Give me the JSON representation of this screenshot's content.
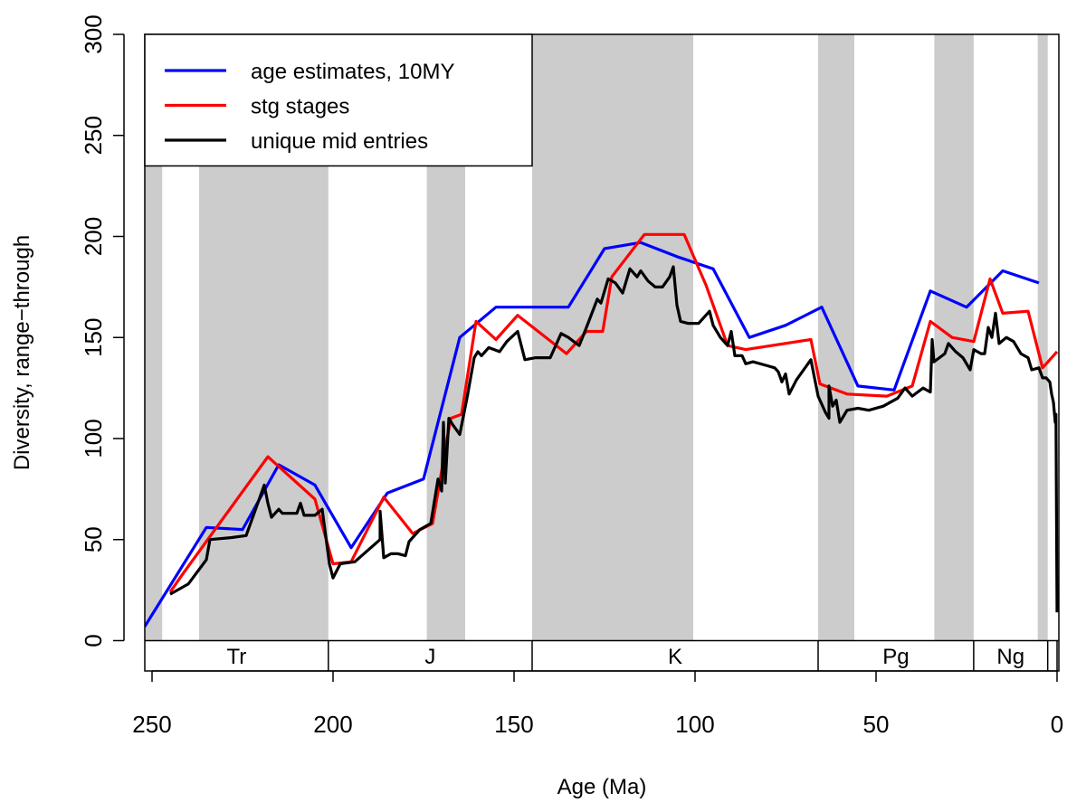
{
  "chart_data": {
    "type": "line",
    "x_label": "Age (Ma)",
    "y_label": "Diversity, range−through",
    "xlim": [
      252,
      -0.5
    ],
    "ylim": [
      -15,
      300
    ],
    "xticks": [
      250,
      200,
      150,
      100,
      50,
      0
    ],
    "yticks": [
      0,
      50,
      100,
      150,
      200,
      250,
      300
    ],
    "legend": "top-left",
    "shaded_intervals": [
      [
        252,
        247.2
      ],
      [
        237,
        201.3
      ],
      [
        174.1,
        163.5
      ],
      [
        145,
        100.5
      ],
      [
        66,
        56
      ],
      [
        33.9,
        23.03
      ],
      [
        5.33,
        2.58
      ]
    ],
    "shade_color": "#cccccc",
    "periods": [
      {
        "label": "Tr",
        "start": 252,
        "end": 201.3
      },
      {
        "label": "J",
        "start": 201.3,
        "end": 145
      },
      {
        "label": "K",
        "start": 145,
        "end": 66
      },
      {
        "label": "Pg",
        "start": 66,
        "end": 23.03
      },
      {
        "label": "Ng",
        "start": 23.03,
        "end": 2.58
      },
      {
        "label": null,
        "start": 2.58,
        "end": 0
      }
    ],
    "series": [
      {
        "name": "age estimates, 10MY",
        "color": "#0000ff",
        "x": [
          252,
          235,
          225,
          215,
          205,
          195,
          185,
          175,
          165,
          155,
          135,
          125,
          115,
          105,
          95,
          85,
          75,
          65,
          55,
          45,
          35,
          25,
          15,
          5
        ],
        "values": [
          7,
          56,
          55,
          87,
          77,
          46,
          73,
          80,
          150,
          165,
          165,
          194,
          197,
          190,
          184,
          150,
          156,
          165,
          126,
          124,
          173,
          165,
          183,
          177
        ]
      },
      {
        "name": "stg stages",
        "color": "#ff0000",
        "x": [
          245,
          241.5,
          218,
          205,
          200,
          195,
          186,
          178,
          172.5,
          167.5,
          164.5,
          160.5,
          155,
          149,
          135.5,
          130,
          125.5,
          123,
          114,
          103,
          97,
          91,
          86,
          68,
          65.5,
          58,
          47,
          40,
          35,
          29,
          23,
          18.5,
          15,
          8,
          4,
          0
        ],
        "values": [
          24,
          33,
          91,
          70,
          38,
          39,
          71,
          53,
          58,
          110,
          112,
          158,
          149,
          161,
          142,
          153,
          153,
          180,
          201,
          201,
          176,
          146,
          144,
          149,
          127,
          122,
          121,
          126,
          158,
          150,
          148,
          179,
          162,
          163,
          135,
          143
        ]
      },
      {
        "name": "unique mid entries",
        "color": "#000000",
        "x": [
          245,
          240,
          235,
          234,
          228,
          224,
          219,
          218,
          217,
          215,
          214,
          210,
          209,
          208,
          205,
          203,
          201,
          200,
          198,
          194,
          187,
          187,
          186,
          184,
          182,
          180,
          179,
          176,
          173,
          172,
          171,
          170,
          169.5,
          169,
          168,
          167,
          165,
          163,
          161,
          160,
          159,
          157,
          154,
          152,
          149,
          147,
          144,
          140,
          137,
          135,
          132,
          130,
          127,
          126,
          124,
          122,
          120,
          118,
          116,
          115,
          113,
          111,
          109,
          107,
          106,
          105,
          104,
          102,
          99,
          96,
          95,
          93,
          91,
          90,
          89,
          87,
          86,
          84,
          80,
          78,
          77,
          76,
          75,
          74,
          72,
          70,
          68,
          66,
          64,
          63,
          63,
          62,
          61,
          60,
          58,
          55,
          52,
          48,
          44,
          42,
          40,
          37,
          35,
          34.5,
          34,
          31,
          30,
          28,
          26,
          24,
          23,
          21,
          20,
          19,
          18,
          17,
          16,
          14,
          12,
          10,
          8,
          7,
          5,
          4,
          3,
          2,
          1.5,
          1,
          0.5,
          0.3,
          0
        ],
        "values": [
          23,
          28,
          40,
          50,
          51,
          52,
          77,
          68,
          61,
          65,
          63,
          63,
          68,
          62,
          62,
          65,
          38,
          31,
          38,
          39,
          50,
          64,
          41,
          43,
          43,
          42,
          49,
          55,
          58,
          69,
          80,
          74,
          108,
          78,
          110,
          107,
          102,
          120,
          140,
          143,
          141,
          145,
          143,
          148,
          153,
          139,
          140,
          140,
          152,
          150,
          146,
          155,
          169,
          167,
          179,
          177,
          172,
          184,
          180,
          183,
          178,
          175,
          175,
          180,
          185,
          166,
          158,
          157,
          157,
          163,
          156,
          150,
          146,
          153,
          141,
          141,
          137,
          138,
          136,
          135,
          133,
          128,
          132,
          122,
          129,
          134,
          139,
          121,
          113,
          110,
          126,
          116,
          119,
          108,
          114,
          115,
          114,
          116,
          120,
          125,
          121,
          125,
          123,
          149,
          138,
          142,
          147,
          143,
          140,
          134,
          144,
          142,
          142,
          155,
          150,
          162,
          147,
          150,
          148,
          142,
          140,
          134,
          135,
          130,
          130,
          128,
          122,
          118,
          108,
          112,
          14
        ]
      }
    ]
  }
}
